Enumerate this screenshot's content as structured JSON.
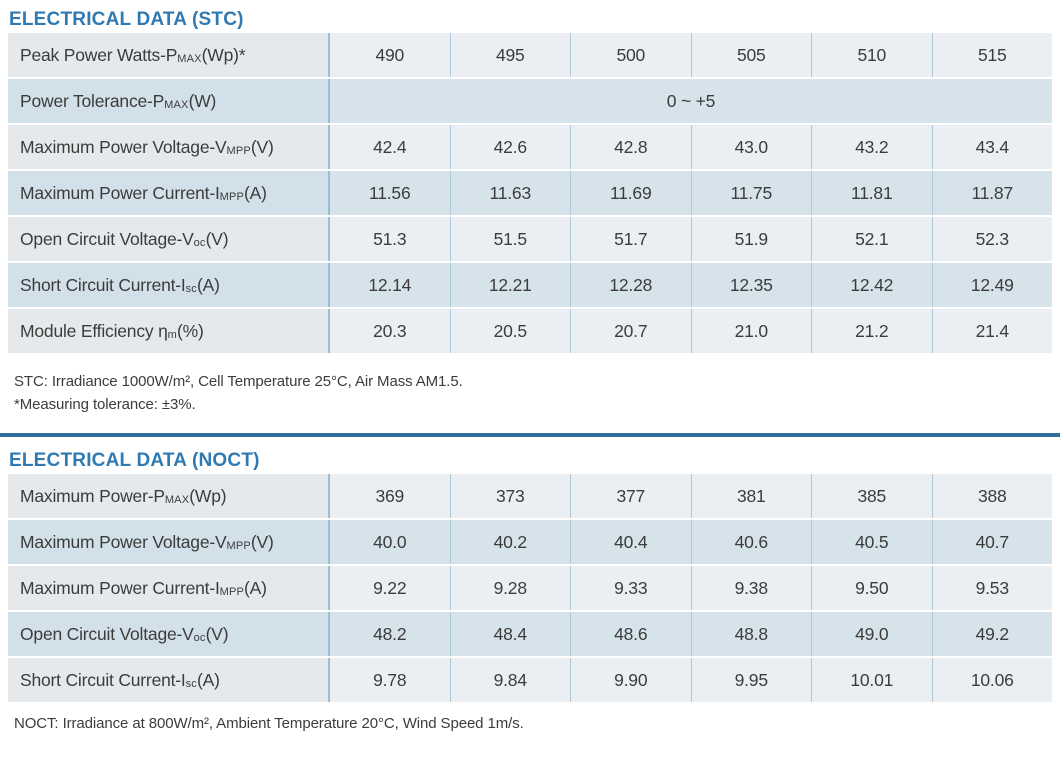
{
  "page": {
    "accent_color": "#2f7ab2",
    "divider_color": "#2e6f9e",
    "row_light_color": "#ebeff3",
    "row_blue_color": "#d6e3eb"
  },
  "stc": {
    "title": "ELECTRICAL DATA (STC)",
    "footnote1": "STC: Irradiance 1000W/m², Cell Temperature 25°C, Air Mass AM1.5.",
    "footnote2": "*Measuring tolerance: ±3%.",
    "rows": [
      {
        "label_parts": [
          {
            "t": "Peak Power Watts-P"
          },
          {
            "t": "MAX",
            "small": true
          },
          {
            "t": " (Wp)*"
          }
        ],
        "values": [
          "490",
          "495",
          "500",
          "505",
          "510",
          "515"
        ]
      },
      {
        "label_parts": [
          {
            "t": "Power Tolerance-P"
          },
          {
            "t": "MAX",
            "small": true
          },
          {
            "t": " (W)"
          }
        ],
        "span_value": "0 ~ +5"
      },
      {
        "label_parts": [
          {
            "t": "Maximum Power Voltage-V"
          },
          {
            "t": "MPP",
            "small": true
          },
          {
            "t": " (V)"
          }
        ],
        "values": [
          "42.4",
          "42.6",
          "42.8",
          "43.0",
          "43.2",
          "43.4"
        ]
      },
      {
        "label_parts": [
          {
            "t": "Maximum Power Current-I"
          },
          {
            "t": "MPP",
            "small": true
          },
          {
            "t": " (A)"
          }
        ],
        "values": [
          "11.56",
          "11.63",
          "11.69",
          "11.75",
          "11.81",
          "11.87"
        ]
      },
      {
        "label_parts": [
          {
            "t": "Open Circuit Voltage-V"
          },
          {
            "t": "oc",
            "small": true
          },
          {
            "t": " (V)"
          }
        ],
        "values": [
          "51.3",
          "51.5",
          "51.7",
          "51.9",
          "52.1",
          "52.3"
        ]
      },
      {
        "label_parts": [
          {
            "t": "Short Circuit Current-I"
          },
          {
            "t": "sc",
            "small": true
          },
          {
            "t": " (A)"
          }
        ],
        "values": [
          "12.14",
          "12.21",
          "12.28",
          "12.35",
          "12.42",
          "12.49"
        ]
      },
      {
        "label_parts": [
          {
            "t": "Module Efficiency η"
          },
          {
            "t": " m",
            "small": true
          },
          {
            "t": " (%)"
          }
        ],
        "values": [
          "20.3",
          "20.5",
          "20.7",
          "21.0",
          "21.2",
          "21.4"
        ]
      }
    ]
  },
  "noct": {
    "title": "ELECTRICAL DATA (NOCT)",
    "footnote": "NOCT: Irradiance at 800W/m², Ambient Temperature 20°C, Wind Speed 1m/s.",
    "rows": [
      {
        "label_parts": [
          {
            "t": "Maximum Power-P"
          },
          {
            "t": "MAX",
            "small": true
          },
          {
            "t": " (Wp)"
          }
        ],
        "values": [
          "369",
          "373",
          "377",
          "381",
          "385",
          "388"
        ]
      },
      {
        "label_parts": [
          {
            "t": "Maximum Power Voltage-V"
          },
          {
            "t": "MPP",
            "small": true
          },
          {
            "t": " (V)"
          }
        ],
        "values": [
          "40.0",
          "40.2",
          "40.4",
          "40.6",
          "40.5",
          "40.7"
        ]
      },
      {
        "label_parts": [
          {
            "t": "Maximum Power Current-I"
          },
          {
            "t": "MPP",
            "small": true
          },
          {
            "t": " (A)"
          }
        ],
        "values": [
          "9.22",
          "9.28",
          "9.33",
          "9.38",
          "9.50",
          "9.53"
        ]
      },
      {
        "label_parts": [
          {
            "t": "Open Circuit Voltage-V"
          },
          {
            "t": "oc",
            "small": true
          },
          {
            "t": " (V)"
          }
        ],
        "values": [
          "48.2",
          "48.4",
          "48.6",
          "48.8",
          "49.0",
          "49.2"
        ]
      },
      {
        "label_parts": [
          {
            "t": "Short Circuit Current-I"
          },
          {
            "t": "sc",
            "small": true
          },
          {
            "t": " (A)"
          }
        ],
        "values": [
          "9.78",
          "9.84",
          "9.90",
          "9.95",
          "10.01",
          "10.06"
        ]
      }
    ]
  }
}
